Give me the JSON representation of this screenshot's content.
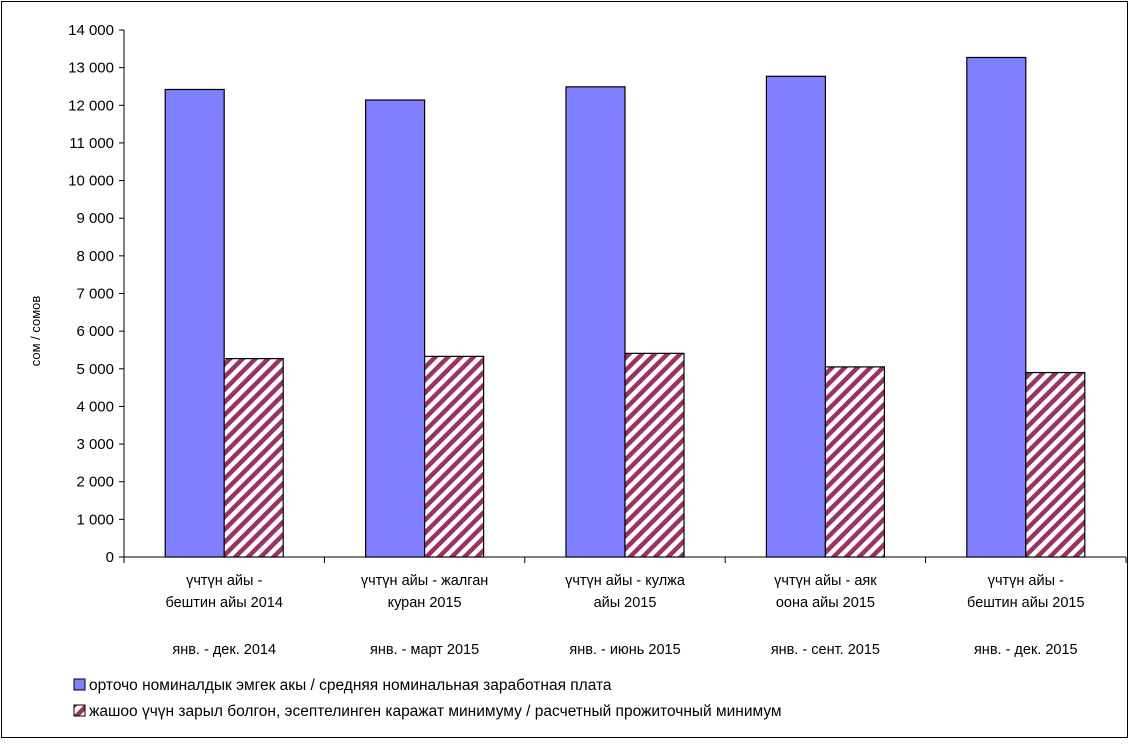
{
  "chart_data": {
    "type": "bar",
    "ylabel": "сом / сомов",
    "xlabel": "",
    "ylim": [
      0,
      14000
    ],
    "yticks": [
      0,
      1000,
      2000,
      3000,
      4000,
      5000,
      6000,
      7000,
      8000,
      9000,
      10000,
      11000,
      12000,
      13000,
      14000
    ],
    "ytick_labels": [
      "0",
      "1 000",
      "2 000",
      "3 000",
      "4 000",
      "5 000",
      "6 000",
      "7 000",
      "8 000",
      "9 000",
      "10 000",
      "11 000",
      "12 000",
      "13 000",
      "14 000"
    ],
    "grid": false,
    "legend_position": "bottom",
    "categories": [
      {
        "kg": [
          "үчтүн айы -",
          "бештин айы 2014"
        ],
        "ru": "янв. - дек. 2014"
      },
      {
        "kg": [
          "үчтүн айы - жалган",
          "куран 2015"
        ],
        "ru": "янв. - март 2015"
      },
      {
        "kg": [
          "үчтүн айы - кулжа",
          "айы 2015"
        ],
        "ru": "янв. - июнь 2015"
      },
      {
        "kg": [
          "үчтүн айы - аяк",
          "оона айы 2015"
        ],
        "ru": "янв. - сент. 2015"
      },
      {
        "kg": [
          "үчтүн айы -",
          "бештин айы 2015"
        ],
        "ru": "янв. - дек. 2015"
      }
    ],
    "series": [
      {
        "name": "орточо номиналдык эмгек акы / средняя номинальная заработная плата",
        "color": "#8080ff",
        "pattern": "solid",
        "values": [
          12420,
          12140,
          12490,
          12770,
          13270
        ]
      },
      {
        "name": "жашоо үчүн зарыл болгон, эсептелинген каражат минимуму / расчетный прожиточный минимум",
        "color": "#993366",
        "pattern": "diagonal-hatch",
        "values": [
          5270,
          5330,
          5410,
          5050,
          4900
        ]
      }
    ]
  }
}
